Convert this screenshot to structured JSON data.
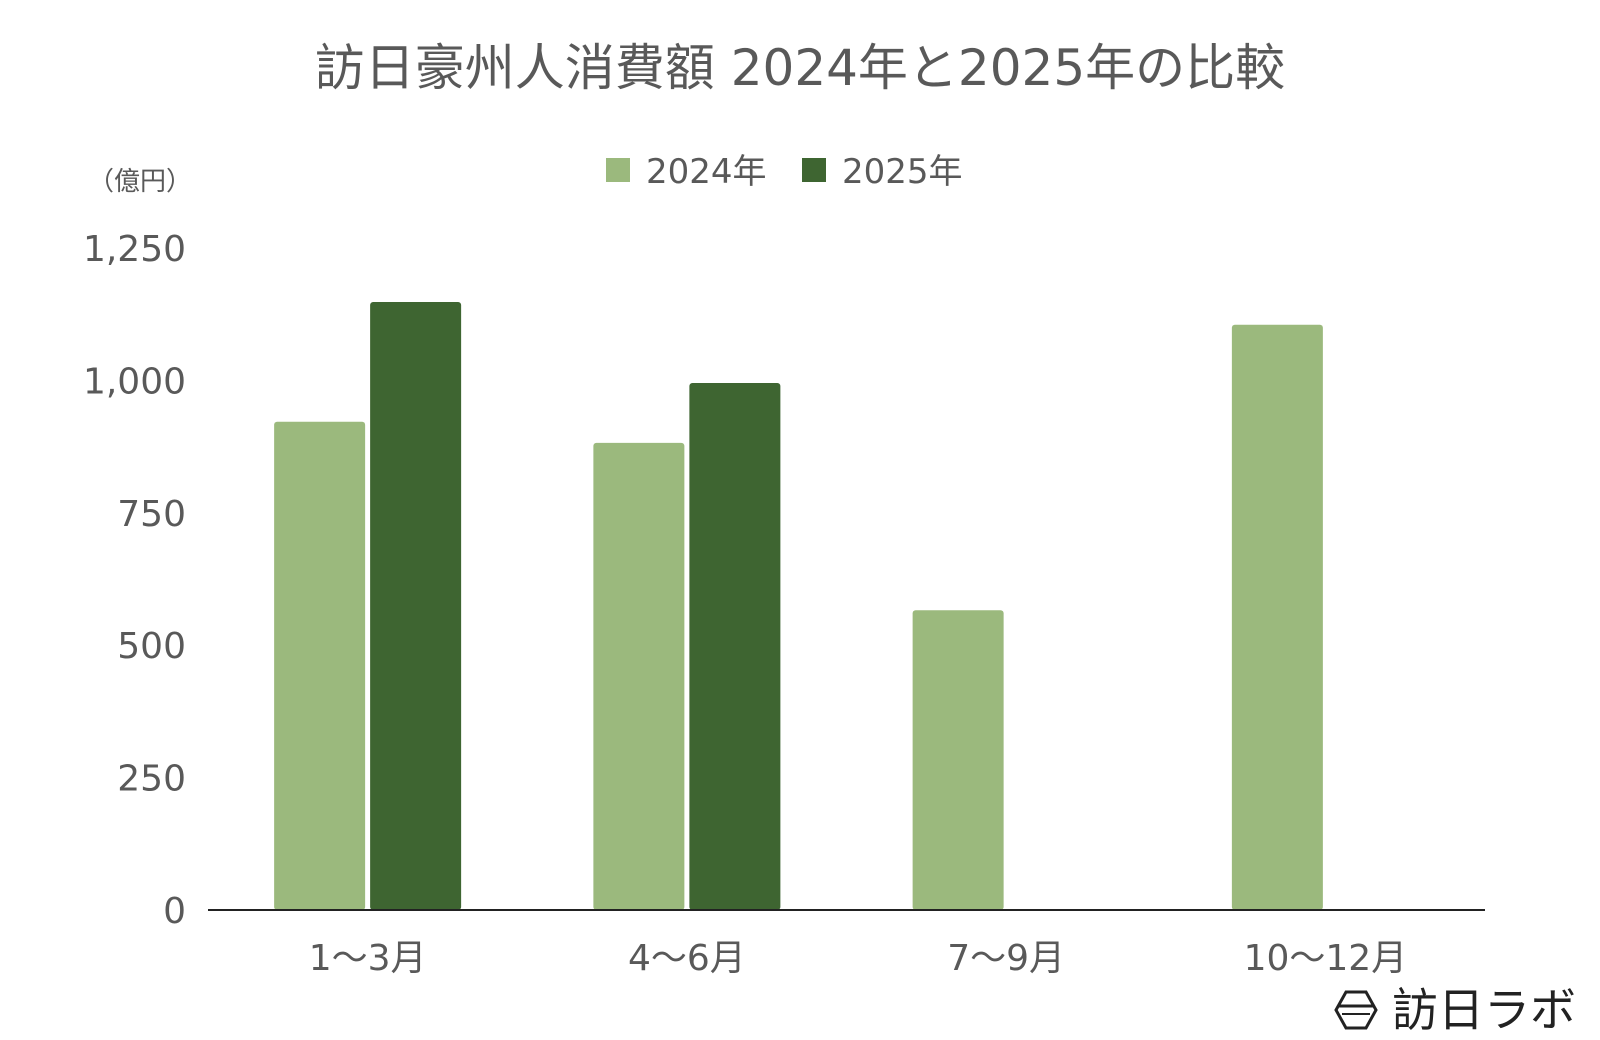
{
  "chart_data": {
    "type": "bar",
    "title": "訪日豪州人消費額 2024年と2025年の比較",
    "unit_label": "（億円）",
    "categories": [
      "1～3月",
      "4～6月",
      "7～9月",
      "10～12月"
    ],
    "series": [
      {
        "name": "2024年",
        "color": "#9bb97d",
        "values": [
          922,
          882,
          566,
          1105
        ]
      },
      {
        "name": "2025年",
        "color": "#3e6531",
        "values": [
          1148,
          995,
          null,
          null
        ]
      }
    ],
    "ylim": [
      0,
      1250
    ],
    "yticks": [
      0,
      250,
      500,
      750,
      1000,
      1250
    ],
    "ytick_labels": [
      "0",
      "250",
      "500",
      "750",
      "1,000",
      "1,250"
    ],
    "legend_position": "top-center",
    "grid": false
  },
  "brand": {
    "logo_text": "訪日ラボ",
    "logo_icon": "hexagon-icon"
  }
}
